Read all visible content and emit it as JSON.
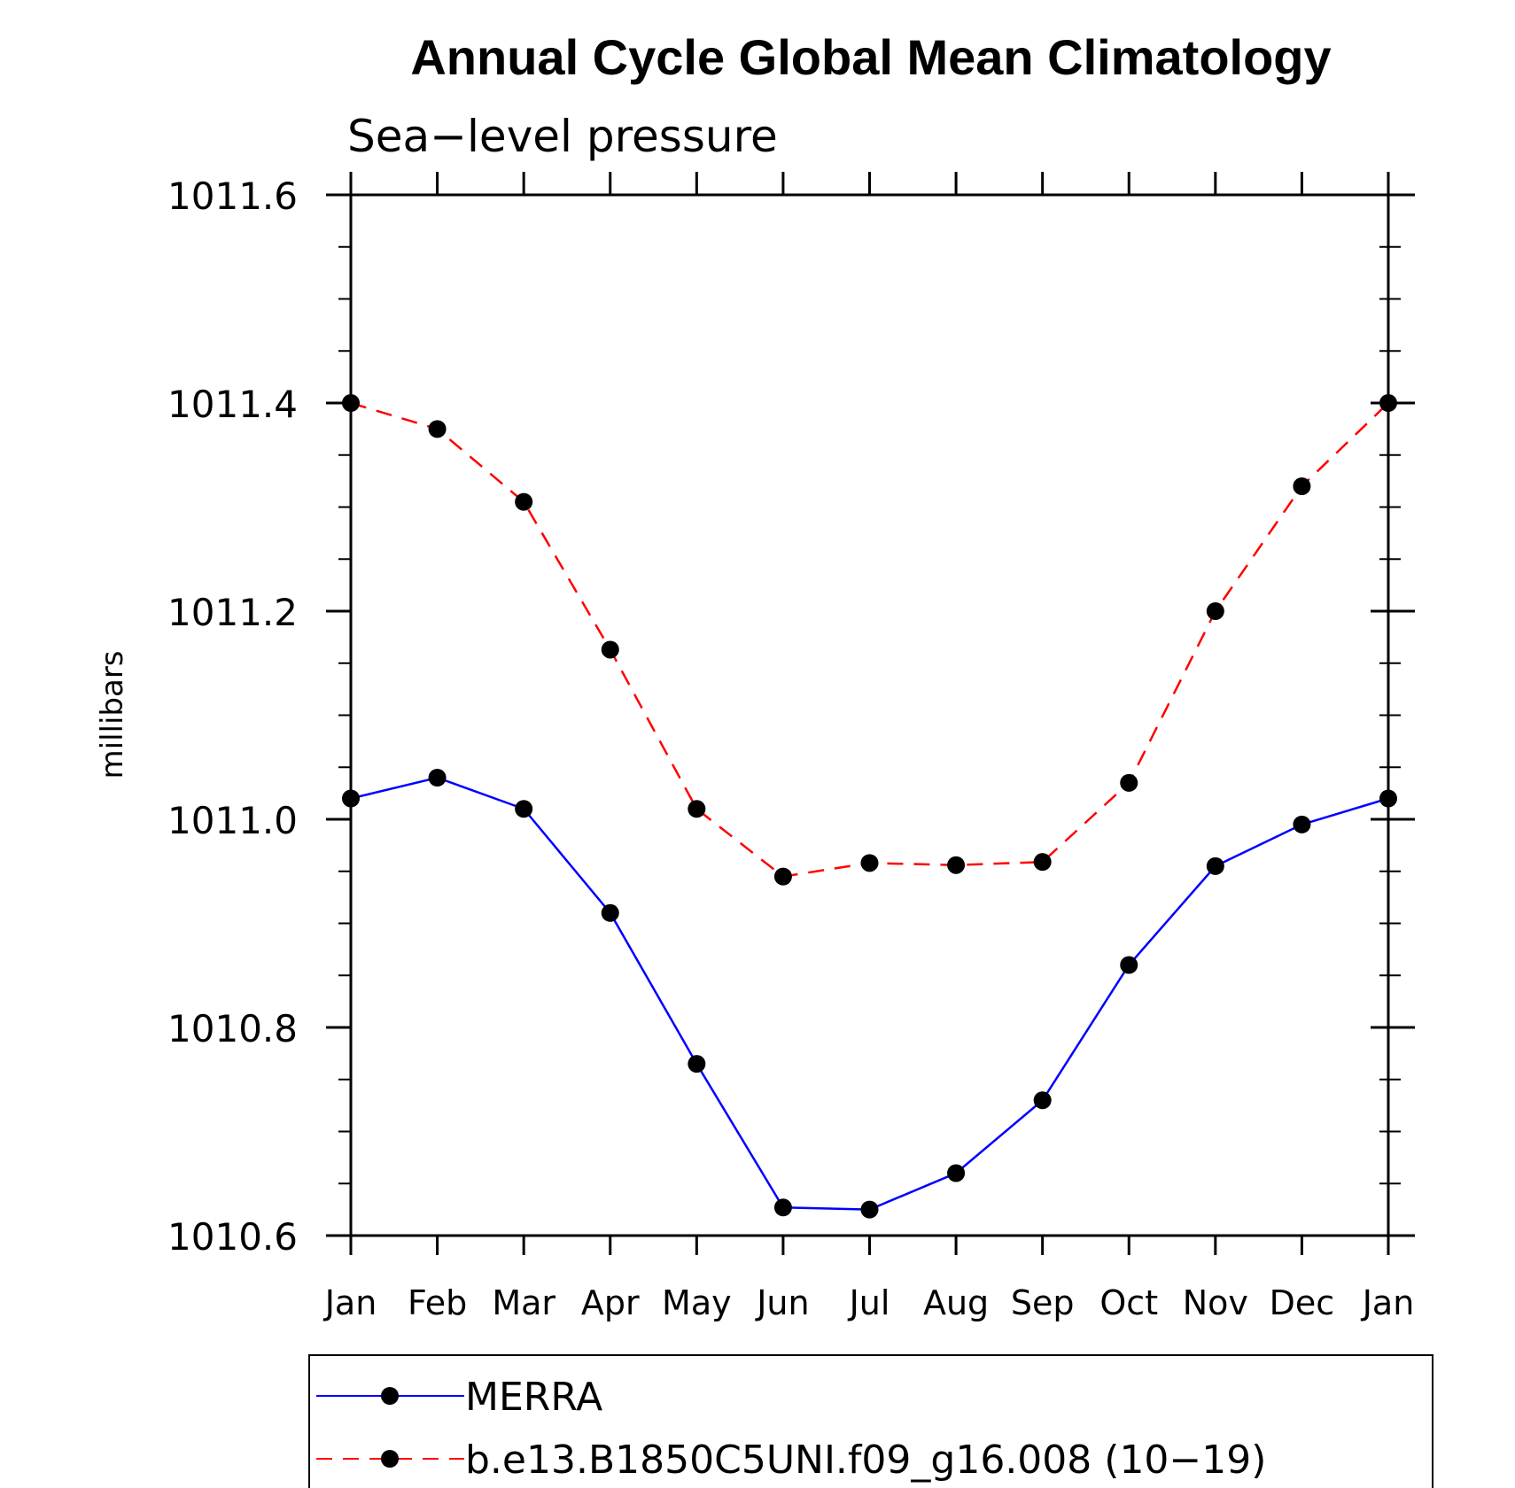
{
  "chart_data": {
    "type": "line",
    "title": "Annual Cycle Global Mean Climatology",
    "subtitle": "Sea−level pressure",
    "xlabel": "",
    "ylabel": "millibars",
    "categories": [
      "Jan",
      "Feb",
      "Mar",
      "Apr",
      "May",
      "Jun",
      "Jul",
      "Aug",
      "Sep",
      "Oct",
      "Nov",
      "Dec",
      "Jan"
    ],
    "ylim": [
      1010.6,
      1011.6
    ],
    "yticks": [
      "1010.6",
      "1010.8",
      "1011.0",
      "1011.2",
      "1011.4",
      "1011.6"
    ],
    "grid": false,
    "legend_position": "bottom",
    "series": [
      {
        "name": "MERRA",
        "color": "#0000ff",
        "line_style": "solid",
        "marker": "filled-circle",
        "values": [
          1011.02,
          1011.04,
          1011.01,
          1010.91,
          1010.765,
          1010.627,
          1010.625,
          1010.66,
          1010.73,
          1010.86,
          1010.955,
          1010.995,
          1011.02
        ]
      },
      {
        "name": "b.e13.B1850C5UNI.f09_g16.008 (10−19)",
        "color": "#ff0000",
        "line_style": "dashed",
        "marker": "filled-circle",
        "values": [
          1011.4,
          1011.375,
          1011.305,
          1011.163,
          1011.01,
          1010.945,
          1010.958,
          1010.956,
          1010.959,
          1011.035,
          1011.2,
          1011.32,
          1011.4
        ]
      }
    ]
  }
}
